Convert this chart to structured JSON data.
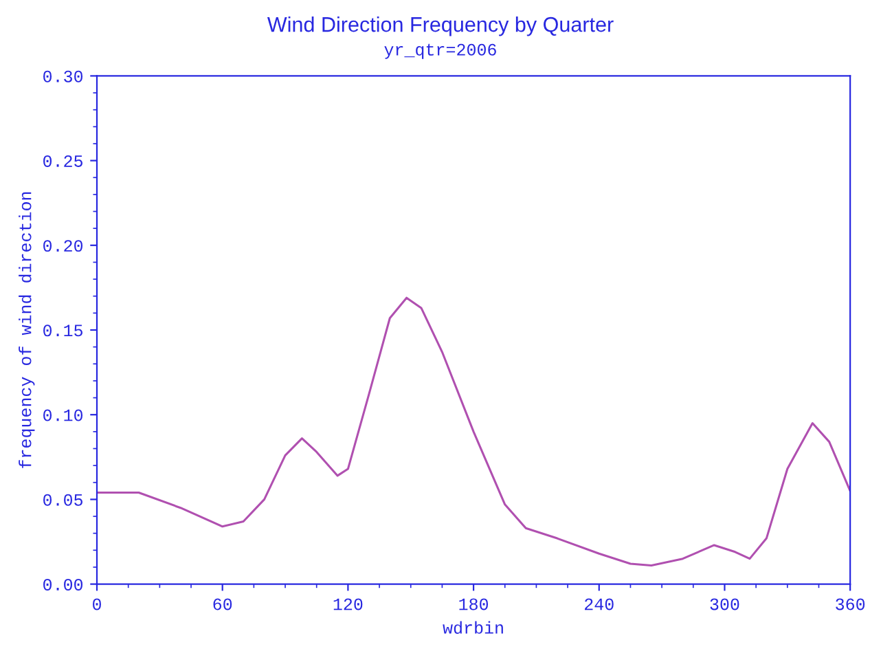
{
  "chart_data": {
    "type": "line",
    "title": "Wind Direction Frequency by Quarter",
    "subtitle": "yr_qtr=2006",
    "xlabel": "wdrbin",
    "ylabel": "frequency of wind direction",
    "x": [
      0,
      20,
      40,
      60,
      70,
      80,
      90,
      98,
      105,
      115,
      120,
      130,
      140,
      148,
      155,
      165,
      180,
      195,
      205,
      220,
      240,
      255,
      265,
      280,
      295,
      305,
      312,
      320,
      330,
      342,
      350,
      360
    ],
    "series": [
      {
        "color": "#b050b0",
        "values": [
          0.054,
          0.054,
          0.045,
          0.034,
          0.037,
          0.05,
          0.076,
          0.086,
          0.078,
          0.064,
          0.068,
          0.112,
          0.157,
          0.169,
          0.163,
          0.137,
          0.09,
          0.047,
          0.033,
          0.027,
          0.018,
          0.012,
          0.011,
          0.015,
          0.023,
          0.019,
          0.015,
          0.027,
          0.068,
          0.095,
          0.084,
          0.055
        ]
      }
    ],
    "xlim": [
      0,
      360
    ],
    "ylim": [
      0,
      0.3
    ],
    "xticks": [
      0,
      60,
      120,
      180,
      240,
      300,
      360
    ],
    "yticks": [
      {
        "value": 0,
        "label": "0.00"
      },
      {
        "value": 0.05,
        "label": "0.05"
      },
      {
        "value": 0.1,
        "label": "0.10"
      },
      {
        "value": 0.15,
        "label": "0.15"
      },
      {
        "value": 0.2,
        "label": "0.20"
      },
      {
        "value": 0.25,
        "label": "0.25"
      },
      {
        "value": 0.3,
        "label": "0.30"
      }
    ],
    "grid": false,
    "legend": false,
    "marker": "none",
    "line_style": "solid"
  }
}
